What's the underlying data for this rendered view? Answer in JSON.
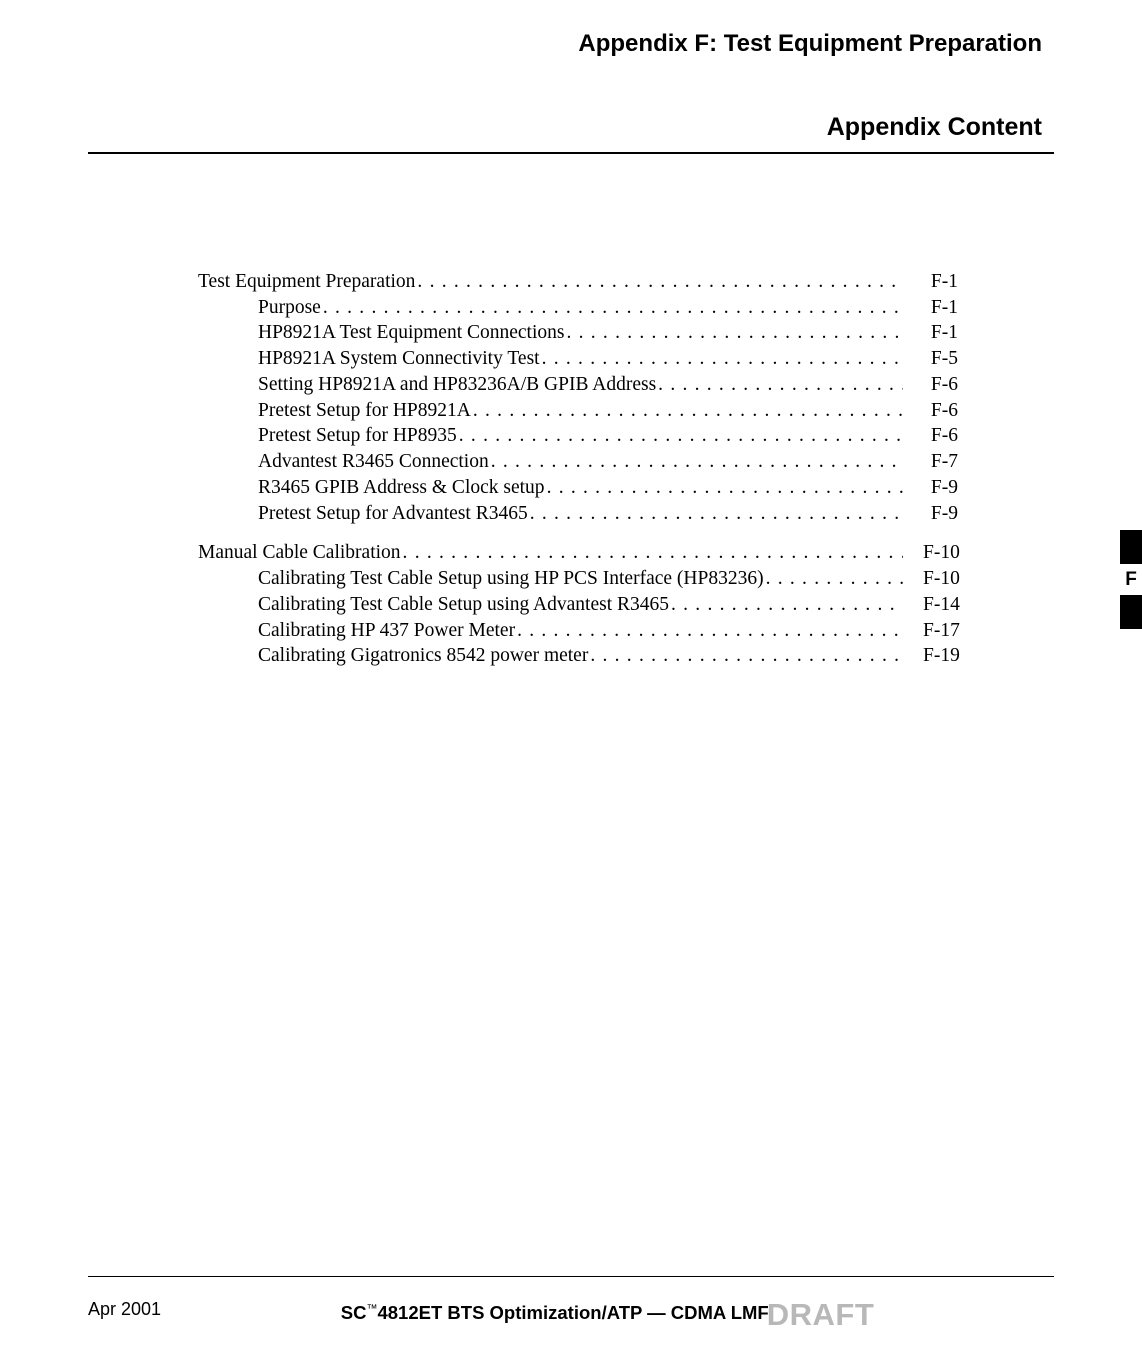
{
  "header": {
    "appendix_title": "Appendix F: Test Equipment Preparation",
    "section_title": "Appendix Content"
  },
  "toc": {
    "groups": [
      {
        "heading": {
          "label": "Test Equipment Preparation",
          "page": "F-1"
        },
        "items": [
          {
            "label": "Purpose",
            "page": "F-1"
          },
          {
            "label": "HP8921A Test Equipment Connections",
            "page": "F-1"
          },
          {
            "label": "HP8921A System Connectivity Test",
            "page": "F-5"
          },
          {
            "label": "Setting HP8921A and HP83236A/B GPIB Address",
            "page": "F-6"
          },
          {
            "label": "Pretest Setup for HP8921A",
            "page": "F-6"
          },
          {
            "label": "Pretest Setup for HP8935",
            "page": "F-6"
          },
          {
            "label": "Advantest R3465 Connection",
            "page": "F-7"
          },
          {
            "label": "R3465 GPIB Address & Clock setup",
            "page": "F-9"
          },
          {
            "label": "Pretest Setup for Advantest R3465",
            "page": "F-9"
          }
        ]
      },
      {
        "heading": {
          "label": "Manual Cable Calibration",
          "page": "F-10"
        },
        "items": [
          {
            "label": "Calibrating Test Cable Setup using HP PCS Interface (HP83236)",
            "page": "F-10"
          },
          {
            "label": "Calibrating Test Cable Setup using Advantest R3465",
            "page": "F-14"
          },
          {
            "label": "Calibrating HP 437 Power Meter",
            "page": "F-17"
          },
          {
            "label": "Calibrating Gigatronics 8542 power meter",
            "page": "F-19"
          }
        ]
      }
    ]
  },
  "side_tab": {
    "label": "F"
  },
  "footer": {
    "date": "Apr 2001",
    "center_prefix": "SC",
    "center_tm": "™",
    "center_main": "4812ET BTS Optimization/ATP — CDMA LMF",
    "draft": "DRAFT"
  },
  "colors": {
    "text": "#000000",
    "background": "#ffffff",
    "draft_gray": "#b8b8b8",
    "tab_black": "#000000"
  },
  "typography": {
    "serif": "Times New Roman",
    "sans": "Arial",
    "title_size": 24,
    "section_size": 25,
    "toc_size": 19.5,
    "footer_size": 18
  }
}
